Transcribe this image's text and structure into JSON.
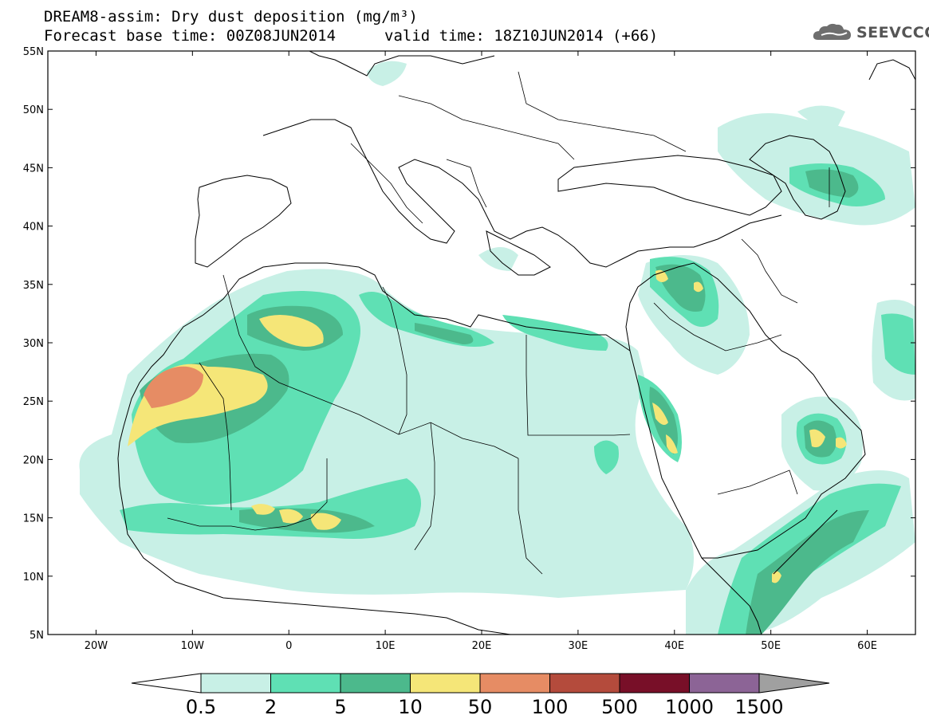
{
  "header": {
    "line1": "DREAM8-assim: Dry dust deposition (mg/m³)",
    "line2_base": "Forecast base time: 00Z08JUN2014",
    "line2_valid": "valid time: 18Z10JUN2014 (+66)",
    "logo_text": "SEEVCCC",
    "logo_icon": "cloud-icon"
  },
  "map": {
    "lat_labels": [
      "55N",
      "50N",
      "45N",
      "40N",
      "35N",
      "30N",
      "25N",
      "20N",
      "15N",
      "10N",
      "5N"
    ],
    "lon_labels": [
      "20W",
      "10W",
      "0",
      "10E",
      "20E",
      "30E",
      "40E",
      "50E",
      "60E"
    ],
    "lon_range": [
      -25,
      65
    ],
    "lat_range": [
      5,
      55
    ]
  },
  "colorbar": {
    "labels": [
      "0.5",
      "2",
      "5",
      "10",
      "50",
      "100",
      "500",
      "1000",
      "1500"
    ],
    "colors": [
      "#c8f0e6",
      "#5fe0b4",
      "#4cb98c",
      "#f5e678",
      "#e68c64",
      "#b44b3c",
      "#780f28",
      "#8c6496",
      "#a0a0a0"
    ]
  }
}
